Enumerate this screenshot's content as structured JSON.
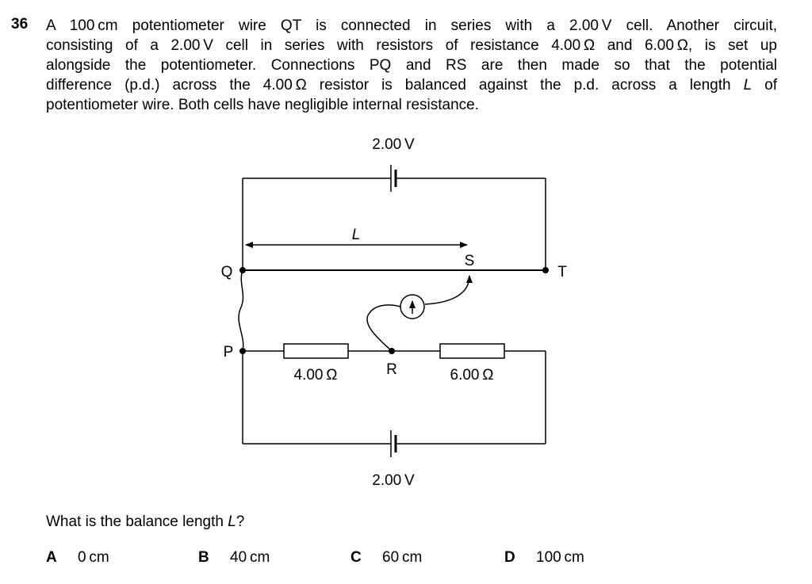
{
  "question": {
    "number": "36",
    "stem_lines": [
      "A 100 cm potentiometer wire QT is connected in series with a 2.00 V cell. Another circuit,",
      "consisting of a 2.00 V cell in series with resistors of resistance 4.00 Ω and 6.00 Ω, is set up",
      "alongside the potentiometer. Connections PQ and RS are then made so that the potential",
      "difference (p.d.) across the 4.00 Ω resistor is balanced against the p.d. across a length ",
      "potentiometer wire. Both cells have negligible internal resistance."
    ],
    "stem_line4_var": "L",
    "stem_line4_end": " of",
    "prompt_text": "What is the balance length ",
    "prompt_var": "L",
    "prompt_end": "?"
  },
  "diagram": {
    "top_cell_label": "2.00 V",
    "bottom_cell_label": "2.00 V",
    "length_label": "L",
    "node_Q": "Q",
    "node_T": "T",
    "node_S": "S",
    "node_P": "P",
    "node_R": "R",
    "resistor_1": "4.00 Ω",
    "resistor_2": "6.00 Ω",
    "galvanometer_icon": "galvanometer-icon"
  },
  "options": [
    {
      "letter": "A",
      "value": "0 cm"
    },
    {
      "letter": "B",
      "value": "40 cm"
    },
    {
      "letter": "C",
      "value": "60 cm"
    },
    {
      "letter": "D",
      "value": "100 cm"
    }
  ]
}
